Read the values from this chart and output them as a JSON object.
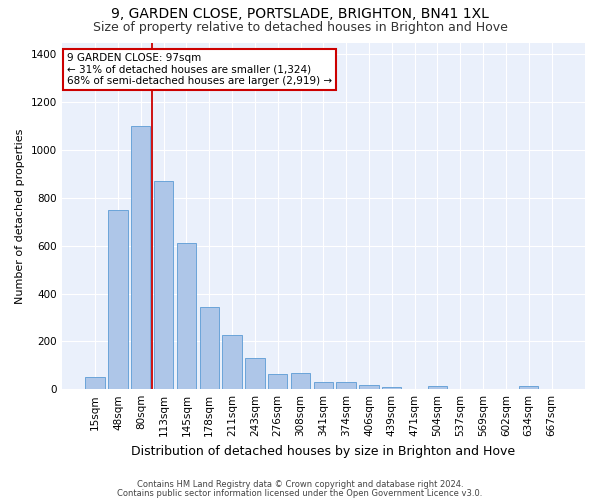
{
  "title_line1": "9, GARDEN CLOSE, PORTSLADE, BRIGHTON, BN41 1XL",
  "title_line2": "Size of property relative to detached houses in Brighton and Hove",
  "xlabel": "Distribution of detached houses by size in Brighton and Hove",
  "ylabel": "Number of detached properties",
  "categories": [
    "15sqm",
    "48sqm",
    "80sqm",
    "113sqm",
    "145sqm",
    "178sqm",
    "211sqm",
    "243sqm",
    "276sqm",
    "308sqm",
    "341sqm",
    "374sqm",
    "406sqm",
    "439sqm",
    "471sqm",
    "504sqm",
    "537sqm",
    "569sqm",
    "602sqm",
    "634sqm",
    "667sqm"
  ],
  "values": [
    50,
    750,
    1100,
    870,
    610,
    345,
    225,
    130,
    65,
    68,
    30,
    28,
    18,
    10,
    0,
    12,
    0,
    0,
    0,
    15,
    0
  ],
  "bar_color": "#aec6e8",
  "bar_edge_color": "#5b9bd5",
  "vline_x": 2.5,
  "annotation_text": "9 GARDEN CLOSE: 97sqm\n← 31% of detached houses are smaller (1,324)\n68% of semi-detached houses are larger (2,919) →",
  "annotation_box_color": "#ffffff",
  "annotation_box_edge_color": "#cc0000",
  "vline_color": "#cc0000",
  "ylim": [
    0,
    1450
  ],
  "yticks": [
    0,
    200,
    400,
    600,
    800,
    1000,
    1200,
    1400
  ],
  "bg_color": "#eaf0fb",
  "footnote1": "Contains HM Land Registry data © Crown copyright and database right 2024.",
  "footnote2": "Contains public sector information licensed under the Open Government Licence v3.0.",
  "title_fontsize": 10,
  "subtitle_fontsize": 9,
  "ylabel_fontsize": 8,
  "xlabel_fontsize": 9,
  "tick_fontsize": 7.5,
  "annot_fontsize": 7.5,
  "footnote_fontsize": 6
}
